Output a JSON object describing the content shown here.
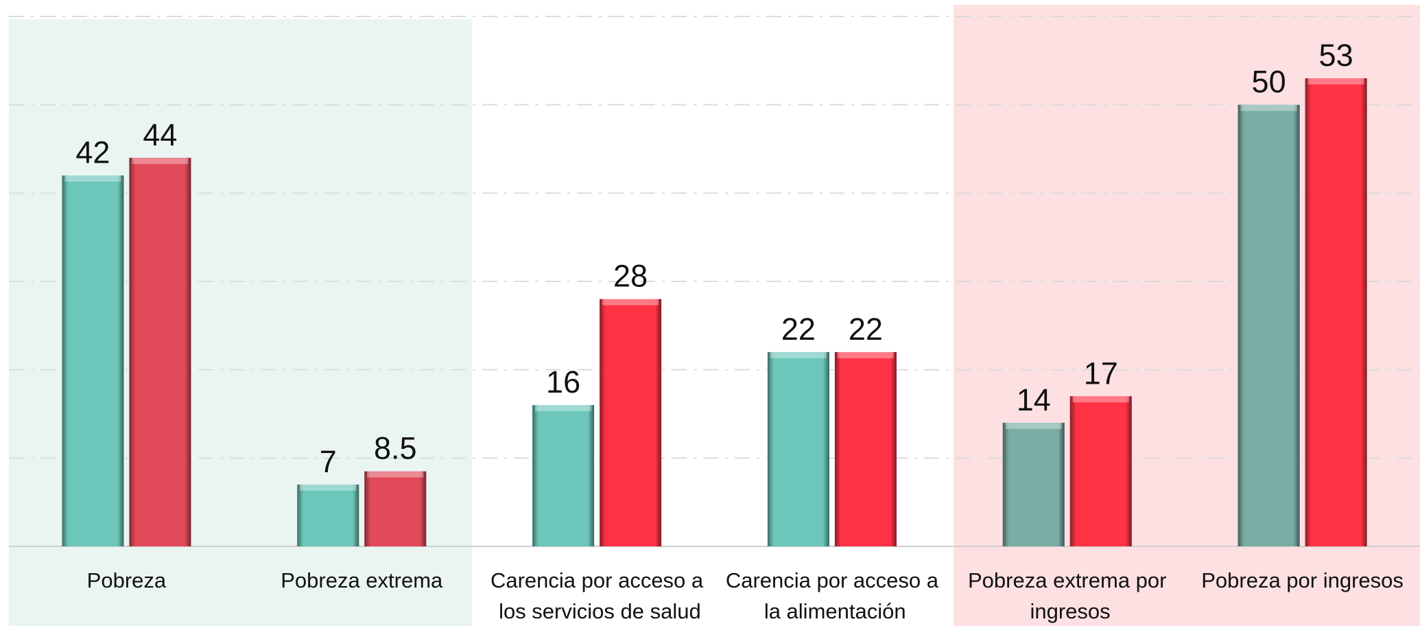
{
  "chart_data": {
    "type": "bar",
    "categories": [
      "Pobreza",
      "Pobreza extrema",
      "Carencia por acceso a los servicios de salud",
      "Carencia por acceso a la alimentación",
      "Pobreza extrema por ingresos",
      "Pobreza por ingresos"
    ],
    "series": [
      {
        "colors": [
          "#6cc7ba",
          "#6cc7ba",
          "#6cc7ba",
          "#6cc7ba",
          "#7aaca4",
          "#7aaca4"
        ],
        "values": [
          42,
          7,
          16,
          22,
          14,
          50
        ]
      },
      {
        "colors": [
          "#e24a5a",
          "#e24a5a",
          "#ff3345",
          "#ff3345",
          "#ff3345",
          "#ff3345"
        ],
        "values": [
          44,
          8.5,
          28,
          22,
          17,
          53
        ]
      }
    ],
    "ylim": [
      0,
      60
    ],
    "yticks": [
      0,
      10,
      20,
      30,
      40,
      50,
      60
    ],
    "grid": true
  }
}
